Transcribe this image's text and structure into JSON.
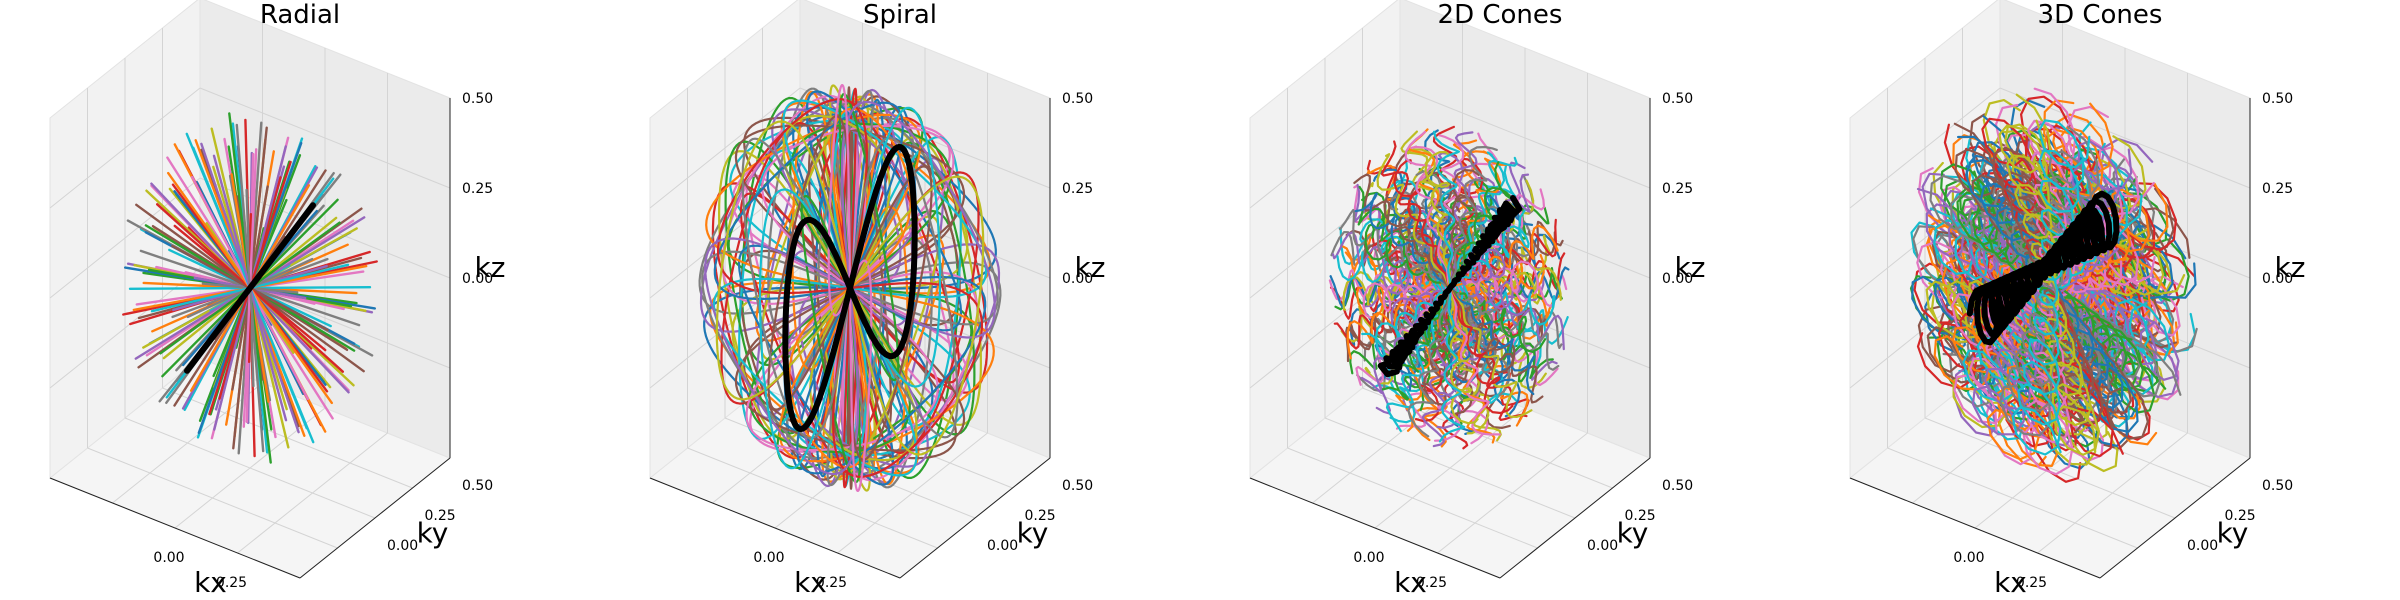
{
  "chart_data": [
    {
      "type": "line",
      "title": "Radial",
      "xlabel": "kx",
      "ylabel": "ky",
      "zlabel": "kz",
      "xlim": [
        -0.5,
        0.5
      ],
      "ylim": [
        -0.5,
        0.5
      ],
      "zlim": [
        -0.5,
        0.5
      ],
      "xticks": [
        "0.00",
        "0.25"
      ],
      "yticks": [
        "0.00",
        "0.25",
        "0.50"
      ],
      "zticks": [
        "0.00",
        "0.25",
        "0.50"
      ],
      "grid": true,
      "trajectory": "radial",
      "n_spokes": 128,
      "k_max": 0.5,
      "highlight_color": "#000000"
    },
    {
      "type": "line",
      "title": "Spiral",
      "xlabel": "kx",
      "ylabel": "ky",
      "zlabel": "kz",
      "xlim": [
        -0.5,
        0.5
      ],
      "ylim": [
        -0.5,
        0.5
      ],
      "zlim": [
        -0.5,
        0.5
      ],
      "xticks": [
        "0.00",
        "0.25"
      ],
      "yticks": [
        "0.00",
        "0.25",
        "0.50"
      ],
      "zticks": [
        "0.00",
        "0.25",
        "0.50"
      ],
      "grid": true,
      "trajectory": "spiral",
      "n_shots": 60,
      "k_max": 0.5,
      "highlight_color": "#000000"
    },
    {
      "type": "line",
      "title": "2D Cones",
      "xlabel": "kx",
      "ylabel": "ky",
      "zlabel": "kz",
      "xlim": [
        -0.5,
        0.5
      ],
      "ylim": [
        -0.5,
        0.5
      ],
      "zlim": [
        -0.5,
        0.5
      ],
      "xticks": [
        "0.00",
        "0.25"
      ],
      "yticks": [
        "0.00",
        "0.25",
        "0.50"
      ],
      "zticks": [
        "0.00",
        "0.25",
        "0.50"
      ],
      "grid": true,
      "trajectory": "cones2d",
      "n_shots": 110,
      "k_max": 0.5,
      "highlight_color": "#000000"
    },
    {
      "type": "line",
      "title": "3D Cones",
      "xlabel": "kx",
      "ylabel": "ky",
      "zlabel": "kz",
      "xlim": [
        -0.5,
        0.5
      ],
      "ylim": [
        -0.5,
        0.5
      ],
      "zlim": [
        -0.5,
        0.5
      ],
      "xticks": [
        "0.00",
        "0.25"
      ],
      "yticks": [
        "0.00",
        "0.25",
        "0.50"
      ],
      "zticks": [
        "0.00",
        "0.25",
        "0.50"
      ],
      "grid": true,
      "trajectory": "cones3d",
      "n_shots": 100,
      "k_max": 0.5,
      "highlight_color": "#000000"
    }
  ],
  "palette": [
    "#1f77b4",
    "#ff7f0e",
    "#2ca02c",
    "#d62728",
    "#9467bd",
    "#8c564b",
    "#e377c2",
    "#7f7f7f",
    "#bcbd22",
    "#17becf"
  ]
}
